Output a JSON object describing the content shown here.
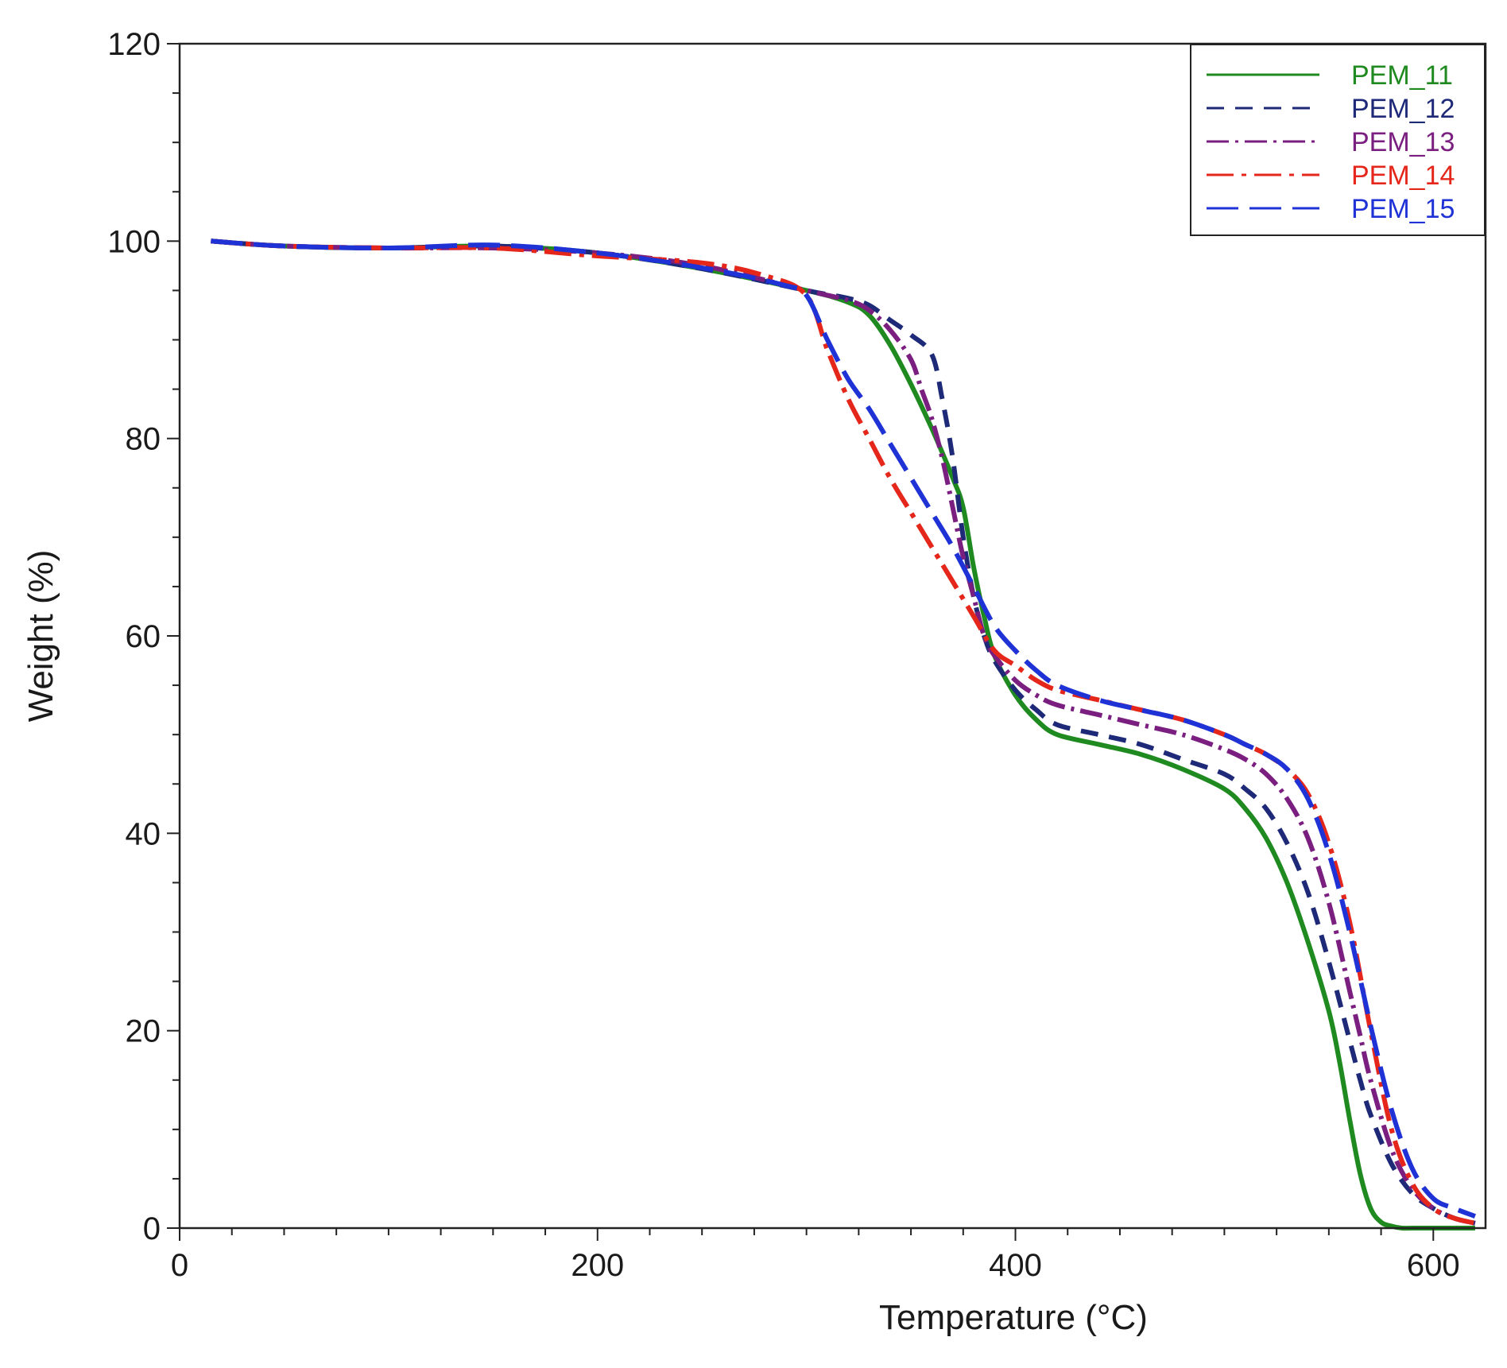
{
  "chart_data": {
    "type": "line",
    "title": "",
    "xlabel": "Temperature (°C)",
    "ylabel": "Weight (%)",
    "xlim": [
      0,
      625
    ],
    "ylim": [
      0,
      120
    ],
    "x_ticks": [
      0,
      200,
      400,
      600
    ],
    "y_ticks": [
      0,
      20,
      40,
      60,
      80,
      100,
      120
    ],
    "x_tick_labels": [
      "0",
      "200",
      "400",
      "600"
    ],
    "y_tick_labels": [
      "0",
      "20",
      "40",
      "60",
      "80",
      "100",
      "120"
    ],
    "grid": false,
    "legend_position": "top-right",
    "series": [
      {
        "name": "PEM_11",
        "color": "#1f8a1f",
        "dash": "solid",
        "x": [
          15,
          50,
          100,
          150,
          200,
          250,
          300,
          320,
          330,
          340,
          350,
          360,
          370,
          375,
          380,
          385,
          390,
          400,
          410,
          420,
          440,
          460,
          480,
          500,
          510,
          520,
          530,
          540,
          550,
          555,
          560,
          565,
          570,
          575,
          580,
          585,
          590,
          600,
          620
        ],
        "y": [
          100,
          99.5,
          99.3,
          99.5,
          98.8,
          97.2,
          95,
          93.8,
          92.5,
          89.5,
          85.5,
          81,
          76,
          73,
          67,
          62,
          58,
          54,
          51.5,
          50,
          49,
          48,
          46.5,
          44.5,
          42.5,
          39.5,
          35,
          29,
          22,
          17,
          11,
          5.5,
          2,
          0.6,
          0.2,
          0,
          0,
          0,
          0
        ]
      },
      {
        "name": "PEM_12",
        "color": "#1e2a78",
        "dash": "22,14",
        "x": [
          15,
          50,
          100,
          150,
          200,
          250,
          300,
          320,
          330,
          340,
          350,
          360,
          365,
          370,
          375,
          380,
          385,
          390,
          400,
          410,
          420,
          440,
          460,
          480,
          500,
          510,
          520,
          530,
          540,
          550,
          560,
          565,
          570,
          580,
          590,
          600,
          610,
          620
        ],
        "y": [
          100,
          99.5,
          99.3,
          99.5,
          98.8,
          97.2,
          95,
          94.2,
          93.5,
          92,
          90.5,
          88.5,
          84,
          78,
          70,
          64,
          60,
          57.5,
          54.5,
          52.5,
          51,
          50,
          49,
          47.5,
          46,
          44.5,
          42.5,
          39,
          34,
          27,
          19,
          15,
          11.5,
          6.5,
          3.5,
          2,
          1,
          0.5
        ]
      },
      {
        "name": "PEM_13",
        "color": "#7a1f80",
        "dash": "28,8,4,8",
        "x": [
          15,
          50,
          100,
          150,
          200,
          250,
          300,
          320,
          330,
          340,
          350,
          355,
          360,
          365,
          370,
          375,
          380,
          385,
          390,
          400,
          410,
          420,
          440,
          460,
          480,
          500,
          510,
          520,
          530,
          540,
          550,
          560,
          565,
          570,
          580,
          590,
          600,
          610,
          620
        ],
        "y": [
          100,
          99.5,
          99.3,
          99.3,
          98.8,
          97.5,
          95,
          94,
          93,
          91,
          88,
          85,
          82,
          78,
          73,
          68,
          64,
          60,
          58,
          55.5,
          54,
          53,
          52,
          51,
          50,
          48.5,
          47.5,
          46,
          43.5,
          39.5,
          33,
          24,
          19.5,
          15,
          8,
          4,
          2,
          1,
          0.5
        ]
      },
      {
        "name": "PEM_14",
        "color": "#e5261b",
        "dash": "34,10,6,10",
        "x": [
          15,
          50,
          100,
          150,
          200,
          250,
          280,
          300,
          310,
          320,
          330,
          340,
          350,
          360,
          370,
          380,
          390,
          400,
          410,
          420,
          440,
          460,
          480,
          500,
          510,
          520,
          530,
          540,
          550,
          560,
          570,
          580,
          590,
          600,
          610,
          620
        ],
        "y": [
          100,
          99.5,
          99.3,
          99.3,
          98.5,
          97.8,
          96.5,
          94.5,
          89,
          84,
          80,
          76,
          72.5,
          69,
          65.5,
          62,
          58.5,
          57,
          55.5,
          54.5,
          53.5,
          52.5,
          51.5,
          50,
          49,
          48,
          46.5,
          44,
          39,
          31,
          20,
          10,
          4.5,
          2,
          1,
          0.5
        ]
      },
      {
        "name": "PEM_15",
        "color": "#1f32d6",
        "dash": "40,14",
        "x": [
          15,
          50,
          100,
          150,
          200,
          250,
          290,
          300,
          310,
          320,
          330,
          340,
          350,
          360,
          370,
          380,
          390,
          400,
          410,
          420,
          440,
          460,
          480,
          500,
          510,
          520,
          530,
          540,
          550,
          560,
          570,
          580,
          590,
          600,
          610,
          620
        ],
        "y": [
          100,
          99.5,
          99.3,
          99.6,
          98.8,
          97.3,
          95.5,
          94.5,
          90,
          86,
          83,
          79.5,
          76,
          72.5,
          69,
          65,
          61,
          58.5,
          56.5,
          55,
          53.5,
          52.5,
          51.5,
          50,
          49,
          48,
          46.5,
          43.5,
          38,
          30,
          20.5,
          12,
          6,
          3,
          2,
          1.2
        ]
      }
    ]
  }
}
